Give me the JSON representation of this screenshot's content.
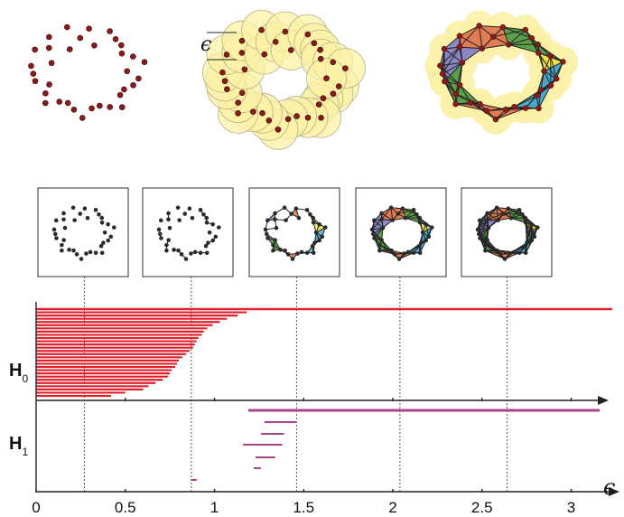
{
  "colors": {
    "point": "#8b1a1a",
    "point_stroke": "#3a0a0a",
    "disk_fill": "#fbf1a6",
    "disk_stroke": "#b8b48a",
    "h0_bar": "#e0202c",
    "h1_bar": "#a8448a",
    "axis": "#222222",
    "blue": "#4aa7c9",
    "orange": "#e07a52",
    "green": "#5aa04a",
    "purple": "#8a86c2",
    "yellow": "#f2e24a"
  },
  "labels": {
    "epsilon_radius": "ϵ",
    "epsilon_axis": "ϵ",
    "h0_main": "H",
    "h0_sub": "0",
    "h1_main": "H",
    "h1_sub": "1"
  },
  "chart_data": {
    "type": "barcode",
    "xlabel": "ϵ",
    "xlim": [
      0,
      3.2
    ],
    "x_ticks": [
      "0",
      "0.5",
      "1",
      "1.5",
      "2",
      "2.5",
      "3"
    ],
    "x_tick_values": [
      0,
      0.5,
      1,
      1.5,
      2,
      2.5,
      3
    ],
    "snapshot_epsilons": [
      0.27,
      0.87,
      1.46,
      2.04,
      2.64
    ],
    "h0_bars": [
      {
        "start": 0,
        "end": 3.23
      },
      {
        "start": 0,
        "end": 1.18
      },
      {
        "start": 0,
        "end": 1.13
      },
      {
        "start": 0,
        "end": 1.07
      },
      {
        "start": 0,
        "end": 1.03
      },
      {
        "start": 0,
        "end": 0.99
      },
      {
        "start": 0,
        "end": 0.96
      },
      {
        "start": 0,
        "end": 0.94
      },
      {
        "start": 0,
        "end": 0.93
      },
      {
        "start": 0,
        "end": 0.91
      },
      {
        "start": 0,
        "end": 0.9
      },
      {
        "start": 0,
        "end": 0.89
      },
      {
        "start": 0,
        "end": 0.88
      },
      {
        "start": 0,
        "end": 0.86
      },
      {
        "start": 0,
        "end": 0.84
      },
      {
        "start": 0,
        "end": 0.82
      },
      {
        "start": 0,
        "end": 0.8
      },
      {
        "start": 0,
        "end": 0.79
      },
      {
        "start": 0,
        "end": 0.78
      },
      {
        "start": 0,
        "end": 0.76
      },
      {
        "start": 0,
        "end": 0.75
      },
      {
        "start": 0,
        "end": 0.74
      },
      {
        "start": 0,
        "end": 0.71
      },
      {
        "start": 0,
        "end": 0.67
      },
      {
        "start": 0,
        "end": 0.63
      },
      {
        "start": 0,
        "end": 0.6
      },
      {
        "start": 0,
        "end": 0.5
      },
      {
        "start": 0,
        "end": 0.42
      }
    ],
    "h1_bars": [
      {
        "start": 1.19,
        "end": 3.16
      },
      {
        "start": 1.28,
        "end": 1.46
      },
      {
        "start": 1.26,
        "end": 1.39
      },
      {
        "start": 1.16,
        "end": 1.38
      },
      {
        "start": 1.23,
        "end": 1.34
      },
      {
        "start": 1.22,
        "end": 1.26
      },
      {
        "start": 0.87,
        "end": 0.9
      }
    ]
  }
}
